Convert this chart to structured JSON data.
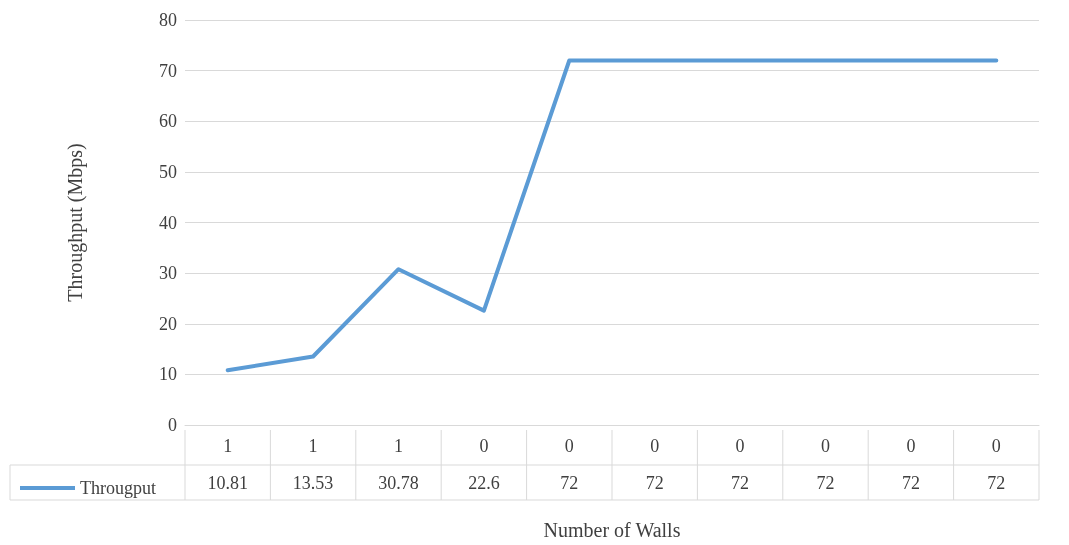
{
  "chart_data": {
    "type": "line",
    "xlabel": "Number of Walls",
    "ylabel": "Throughput (Mbps)",
    "categories": [
      "1",
      "1",
      "1",
      "0",
      "0",
      "0",
      "0",
      "0",
      "0",
      "0"
    ],
    "series": [
      {
        "name": "Througput",
        "color": "#5b9bd5",
        "values": [
          10.81,
          13.53,
          30.78,
          22.6,
          72,
          72,
          72,
          72,
          72,
          72
        ]
      }
    ],
    "ylim": [
      0,
      80
    ],
    "yticks": [
      0,
      10,
      20,
      30,
      40,
      50,
      60,
      70,
      80
    ],
    "grid": "y",
    "legend": "bottom left",
    "data_labels": true,
    "marker": "none",
    "line_style": "solid"
  }
}
